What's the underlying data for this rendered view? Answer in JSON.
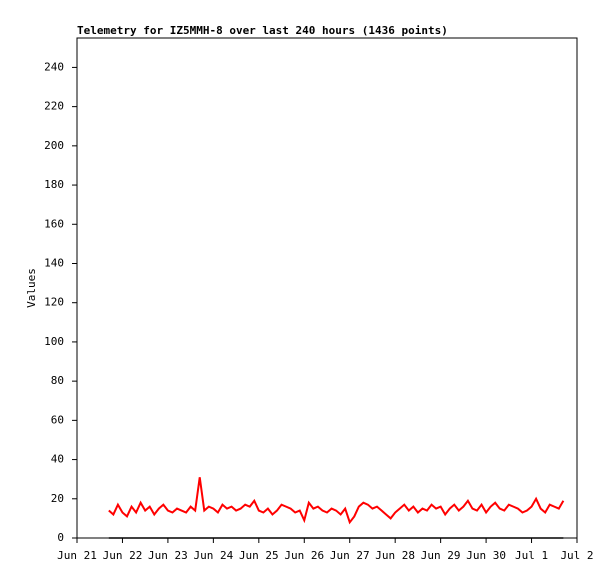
{
  "chart_data": {
    "type": "line",
    "title": "Telemetry for IZ5MMH-8 over last 240 hours (1436 points)",
    "ylabel": "Values",
    "x": [
      0.7,
      0.8,
      0.9,
      1.0,
      1.1,
      1.2,
      1.3,
      1.4,
      1.5,
      1.6,
      1.7,
      1.8,
      1.9,
      2.0,
      2.1,
      2.2,
      2.3,
      2.4,
      2.5,
      2.6,
      2.7,
      2.8,
      2.9,
      3.0,
      3.1,
      3.2,
      3.3,
      3.4,
      3.5,
      3.6,
      3.7,
      3.8,
      3.9,
      4.0,
      4.1,
      4.2,
      4.3,
      4.4,
      4.5,
      4.6,
      4.7,
      4.8,
      4.9,
      5.0,
      5.1,
      5.2,
      5.3,
      5.4,
      5.5,
      5.6,
      5.7,
      5.8,
      5.9,
      6.0,
      6.1,
      6.2,
      6.3,
      6.4,
      6.5,
      6.6,
      6.7,
      6.8,
      6.9,
      7.0,
      7.1,
      7.2,
      7.3,
      7.4,
      7.5,
      7.6,
      7.7,
      7.8,
      7.9,
      8.0,
      8.1,
      8.2,
      8.3,
      8.4,
      8.5,
      8.6,
      8.7,
      8.8,
      8.9,
      9.0,
      9.1,
      9.2,
      9.3,
      9.4,
      9.5,
      9.6,
      9.7,
      9.8,
      9.9,
      10.0,
      10.1,
      10.2,
      10.3,
      10.4,
      10.5,
      10.6,
      10.7
    ],
    "xlim": [
      0,
      11
    ],
    "xticks": [
      {
        "value": 0,
        "label": "Jun 21"
      },
      {
        "value": 1,
        "label": "Jun 22"
      },
      {
        "value": 2,
        "label": "Jun 23"
      },
      {
        "value": 3,
        "label": "Jun 24"
      },
      {
        "value": 4,
        "label": "Jun 25"
      },
      {
        "value": 5,
        "label": "Jun 26"
      },
      {
        "value": 6,
        "label": "Jun 27"
      },
      {
        "value": 7,
        "label": "Jun 28"
      },
      {
        "value": 8,
        "label": "Jun 29"
      },
      {
        "value": 9,
        "label": "Jun 30"
      },
      {
        "value": 10,
        "label": "Jul 1"
      },
      {
        "value": 11,
        "label": "Jul 2"
      }
    ],
    "ylim": [
      0,
      255
    ],
    "yticks": [
      0,
      20,
      40,
      60,
      80,
      100,
      120,
      140,
      160,
      180,
      200,
      220,
      240
    ],
    "series": [
      {
        "color": "#ff0000",
        "values": [
          14,
          12,
          17,
          13,
          11,
          16,
          13,
          18,
          14,
          16,
          12,
          15,
          17,
          14,
          13,
          15,
          14,
          13,
          16,
          14,
          31,
          14,
          16,
          15,
          13,
          17,
          15,
          16,
          14,
          15,
          17,
          16,
          19,
          14,
          13,
          15,
          12,
          14,
          17,
          16,
          15,
          13,
          14,
          9,
          18,
          15,
          16,
          14,
          13,
          15,
          14,
          12,
          15,
          8,
          11,
          16,
          18,
          17,
          15,
          16,
          14,
          12,
          10,
          13,
          15,
          17,
          14,
          16,
          13,
          15,
          14,
          17,
          15,
          16,
          12,
          15,
          17,
          14,
          16,
          19,
          15,
          14,
          17,
          13,
          16,
          18,
          15,
          14,
          17,
          16,
          15,
          13,
          14,
          16,
          20,
          15,
          13,
          17,
          16,
          15,
          19
        ]
      },
      {
        "color": "#000000",
        "values": [
          0,
          0,
          0,
          0,
          0,
          0,
          0,
          0,
          0,
          0,
          0,
          0,
          0,
          0,
          0,
          0,
          0,
          0,
          0,
          0,
          0,
          0,
          0,
          0,
          0,
          0,
          0,
          0,
          0,
          0,
          0,
          0,
          0,
          0,
          0,
          0,
          0,
          0,
          0,
          0,
          0,
          0,
          0,
          0,
          0,
          0,
          0,
          0,
          0,
          0,
          0,
          0,
          0,
          0,
          0,
          0,
          0,
          0,
          0,
          0,
          0,
          0,
          0,
          0,
          0,
          0,
          0,
          0,
          0,
          0,
          0,
          0,
          0,
          0,
          0,
          0,
          0,
          0,
          0,
          0,
          0,
          0,
          0,
          0,
          0,
          0,
          0,
          0,
          0,
          0,
          0,
          0,
          0,
          0,
          0,
          0,
          0,
          0,
          0,
          0,
          0
        ]
      }
    ]
  }
}
